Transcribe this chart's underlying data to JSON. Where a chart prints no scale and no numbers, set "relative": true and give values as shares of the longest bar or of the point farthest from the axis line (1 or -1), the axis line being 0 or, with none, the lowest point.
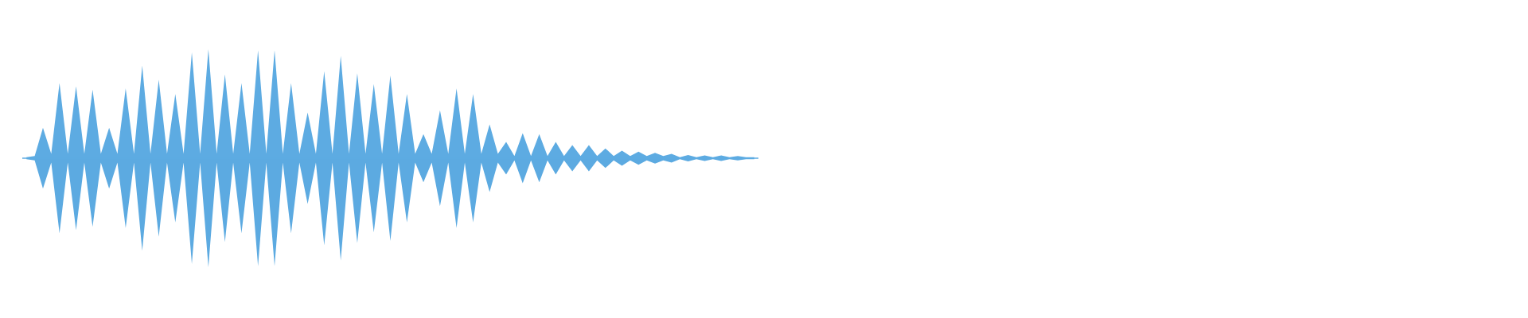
{
  "chart_data": {
    "type": "area",
    "relative": true,
    "ref_lines": [
      {
        "axis": "y",
        "value": 0,
        "color": "#5dabe2"
      }
    ],
    "categories": [
      null,
      null,
      null,
      null,
      null,
      null,
      null,
      null,
      null,
      null,
      null,
      null,
      null,
      null,
      null,
      null,
      null,
      null,
      null,
      null,
      null,
      null,
      null,
      null,
      null,
      null,
      null,
      null,
      null,
      null,
      null,
      null,
      null,
      null,
      null,
      null,
      null,
      null,
      null,
      null,
      null,
      null,
      null,
      null,
      null,
      null,
      null,
      null,
      null,
      null,
      null,
      null,
      null,
      null,
      null,
      null,
      null,
      null,
      null,
      null,
      null,
      null,
      null,
      null,
      null,
      null,
      null,
      null,
      null,
      null,
      null,
      null,
      null,
      null,
      null,
      null,
      null,
      null,
      null,
      null,
      null,
      null,
      null,
      null,
      null,
      null,
      null,
      null,
      null
    ],
    "series": [
      {
        "color": "#5dabe2",
        "values": [
          0.01,
          0.02,
          0.28,
          0.04,
          0.69,
          0.04,
          0.66,
          0.04,
          0.63,
          0.04,
          0.28,
          0.04,
          0.64,
          0.04,
          0.85,
          0.04,
          0.72,
          0.04,
          0.59,
          0.04,
          0.97,
          0.04,
          1.0,
          0.04,
          0.77,
          0.04,
          0.69,
          0.04,
          0.99,
          0.04,
          0.99,
          0.04,
          0.69,
          0.04,
          0.42,
          0.04,
          0.8,
          0.04,
          0.94,
          0.04,
          0.78,
          0.04,
          0.68,
          0.04,
          0.76,
          0.04,
          0.59,
          0.04,
          0.22,
          0.04,
          0.44,
          0.04,
          0.64,
          0.04,
          0.59,
          0.04,
          0.31,
          0.04,
          0.15,
          0.02,
          0.23,
          0.02,
          0.22,
          0.02,
          0.15,
          0.02,
          0.12,
          0.02,
          0.12,
          0.02,
          0.09,
          0.02,
          0.07,
          0.02,
          0.06,
          0.02,
          0.05,
          0.02,
          0.04,
          0.01,
          0.03,
          0.01,
          0.025,
          0.01,
          0.025,
          0.01,
          0.02,
          0.01,
          0.01
        ]
      },
      {
        "color": "#5caae1",
        "values": [
          -0.01,
          -0.02,
          -0.28,
          -0.04,
          -0.69,
          -0.04,
          -0.66,
          -0.04,
          -0.63,
          -0.04,
          -0.28,
          -0.04,
          -0.64,
          -0.04,
          -0.85,
          -0.04,
          -0.72,
          -0.04,
          -0.59,
          -0.04,
          -0.97,
          -0.04,
          -1.0,
          -0.04,
          -0.77,
          -0.04,
          -0.69,
          -0.04,
          -0.99,
          -0.04,
          -0.99,
          -0.04,
          -0.69,
          -0.04,
          -0.42,
          -0.04,
          -0.8,
          -0.04,
          -0.94,
          -0.04,
          -0.78,
          -0.04,
          -0.68,
          -0.04,
          -0.76,
          -0.04,
          -0.59,
          -0.04,
          -0.22,
          -0.04,
          -0.44,
          -0.04,
          -0.64,
          -0.04,
          -0.59,
          -0.04,
          -0.31,
          -0.04,
          -0.15,
          -0.02,
          -0.23,
          -0.02,
          -0.22,
          -0.02,
          -0.15,
          -0.02,
          -0.12,
          -0.02,
          -0.12,
          -0.02,
          -0.09,
          -0.02,
          -0.07,
          -0.02,
          -0.06,
          -0.02,
          -0.05,
          -0.02,
          -0.04,
          -0.01,
          -0.03,
          -0.01,
          -0.025,
          -0.01,
          -0.025,
          -0.01,
          -0.02,
          -0.01,
          -0.01
        ]
      }
    ]
  }
}
